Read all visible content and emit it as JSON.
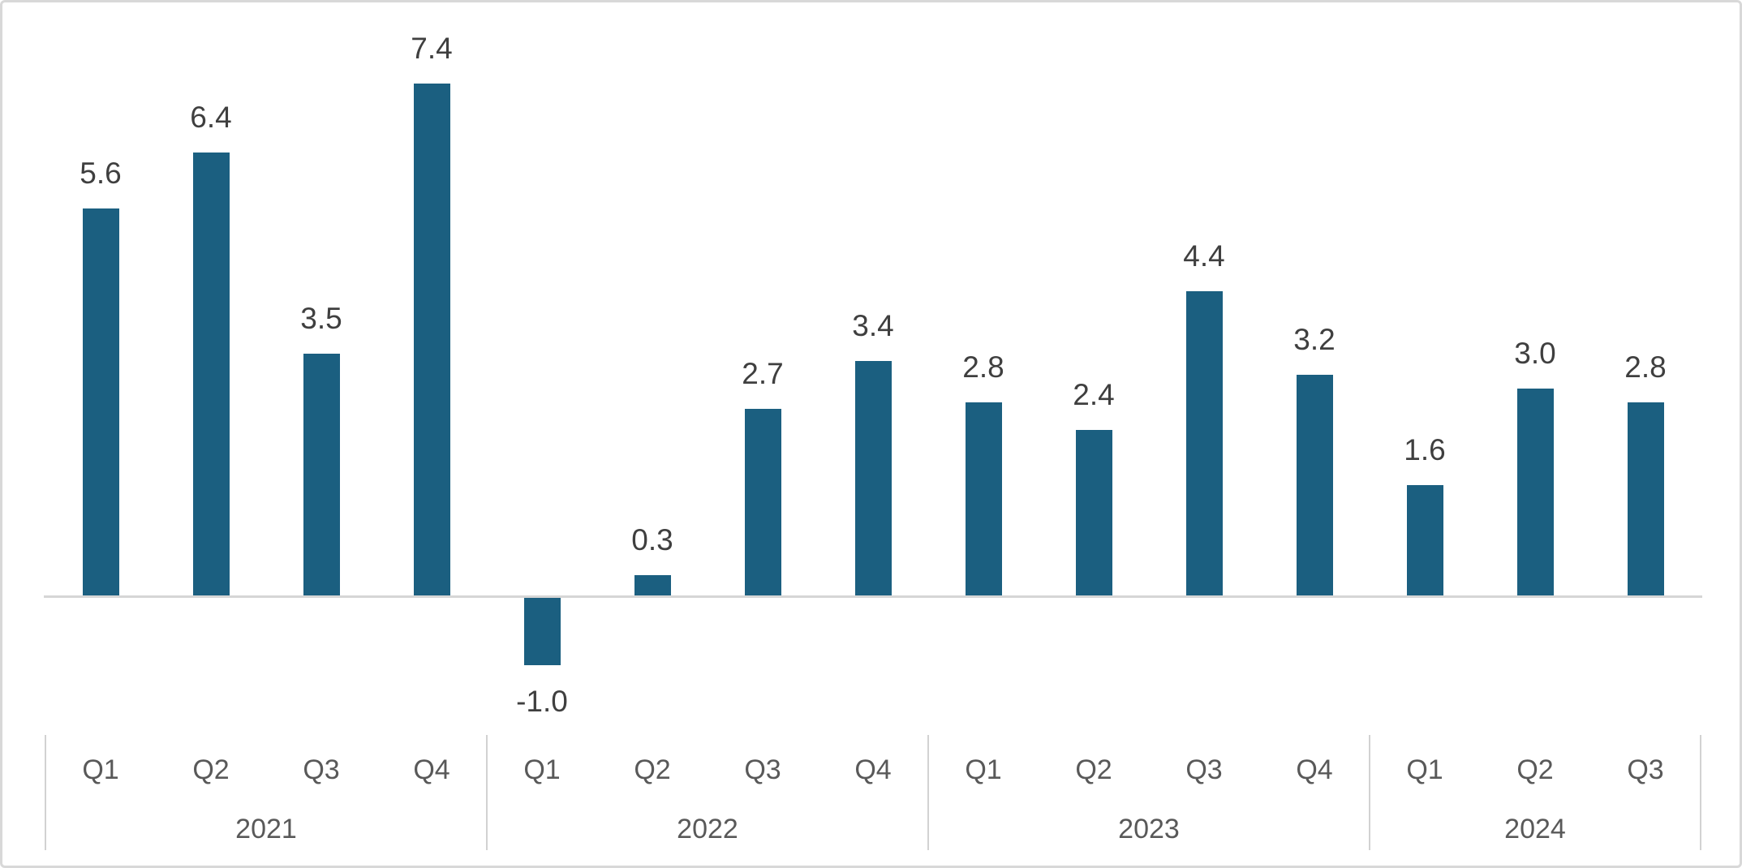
{
  "chart_data": {
    "type": "bar",
    "title": "",
    "xlabel": "",
    "ylabel": "",
    "ylim": [
      -1.5,
      8
    ],
    "grid": false,
    "legend": false,
    "value_labels": true,
    "groups": [
      {
        "year": "2021",
        "quarters": [
          "Q1",
          "Q2",
          "Q3",
          "Q4"
        ],
        "values": [
          5.6,
          6.4,
          3.5,
          7.4
        ],
        "labels": [
          "5.6",
          "6.4",
          "3.5",
          "7.4"
        ]
      },
      {
        "year": "2022",
        "quarters": [
          "Q1",
          "Q2",
          "Q3",
          "Q4"
        ],
        "values": [
          -1.0,
          0.3,
          2.7,
          3.4
        ],
        "labels": [
          "-1.0",
          "0.3",
          "2.7",
          "3.4"
        ]
      },
      {
        "year": "2023",
        "quarters": [
          "Q1",
          "Q2",
          "Q3",
          "Q4"
        ],
        "values": [
          2.8,
          2.4,
          4.4,
          3.2
        ],
        "labels": [
          "2.8",
          "2.4",
          "4.4",
          "3.2"
        ]
      },
      {
        "year": "2024",
        "quarters": [
          "Q1",
          "Q2",
          "Q3"
        ],
        "values": [
          1.6,
          3.0,
          2.8
        ],
        "labels": [
          "1.6",
          "3.0",
          "2.8"
        ]
      }
    ],
    "colors": {
      "bar": "#1b5f80",
      "value_label": "#3f3f3f",
      "axis_label": "#595959",
      "baseline": "#d6d6d6",
      "separator": "#d2d2d2",
      "frame_border": "#d8d8d8",
      "background": "#ffffff"
    }
  }
}
